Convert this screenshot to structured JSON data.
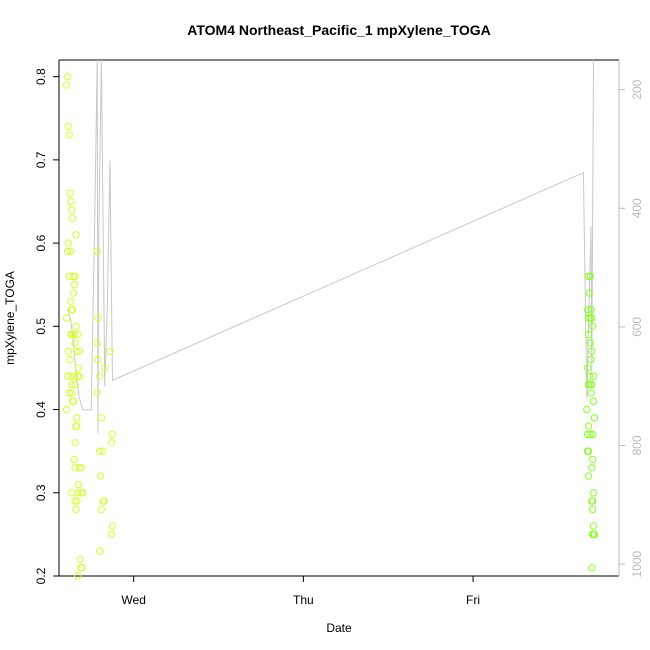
{
  "chart_data": {
    "type": "scatter",
    "title": "ATOM4 Northeast_Pacific_1 mpXylene_TOGA",
    "xlabel": "Date",
    "ylabel": "mpXylene_TOGA",
    "x_unit": "days",
    "xlim": [
      -0.44,
      2.86
    ],
    "ylim": [
      0.2,
      0.82
    ],
    "x_ticks": [
      {
        "value": 0,
        "label": "Wed"
      },
      {
        "value": 1,
        "label": "Thu"
      },
      {
        "value": 2,
        "label": "Fri"
      }
    ],
    "y_ticks": [
      0.2,
      0.3,
      0.4,
      0.5,
      0.6,
      0.7,
      0.8
    ],
    "y2_ticks": [
      200,
      400,
      600,
      800,
      1000
    ],
    "y2lim": [
      1020,
      150
    ],
    "colors": {
      "group_1": "#d5ff2a",
      "group_2": "#88ff22",
      "altitude_line": "#c8c8c8",
      "axis": "#000000",
      "y2_axis": "#bbbbbb"
    },
    "series": [
      {
        "group": "group_1",
        "points": [
          [
            -0.39,
            0.8
          ],
          [
            -0.395,
            0.79
          ],
          [
            -0.385,
            0.74
          ],
          [
            -0.38,
            0.73
          ],
          [
            -0.375,
            0.66
          ],
          [
            -0.37,
            0.65
          ],
          [
            -0.365,
            0.64
          ],
          [
            -0.36,
            0.63
          ],
          [
            -0.34,
            0.61
          ],
          [
            -0.385,
            0.6
          ],
          [
            -0.39,
            0.59
          ],
          [
            -0.37,
            0.59
          ],
          [
            -0.38,
            0.56
          ],
          [
            -0.355,
            0.56
          ],
          [
            -0.345,
            0.56
          ],
          [
            -0.35,
            0.55
          ],
          [
            -0.355,
            0.54
          ],
          [
            -0.37,
            0.53
          ],
          [
            -0.365,
            0.52
          ],
          [
            -0.36,
            0.52
          ],
          [
            -0.395,
            0.51
          ],
          [
            -0.34,
            0.5
          ],
          [
            -0.37,
            0.49
          ],
          [
            -0.36,
            0.49
          ],
          [
            -0.35,
            0.49
          ],
          [
            -0.33,
            0.49
          ],
          [
            -0.345,
            0.48
          ],
          [
            -0.385,
            0.47
          ],
          [
            -0.335,
            0.47
          ],
          [
            -0.32,
            0.47
          ],
          [
            -0.375,
            0.46
          ],
          [
            -0.325,
            0.45
          ],
          [
            -0.39,
            0.44
          ],
          [
            -0.37,
            0.44
          ],
          [
            -0.35,
            0.44
          ],
          [
            -0.33,
            0.44
          ],
          [
            -0.32,
            0.44
          ],
          [
            -0.365,
            0.43
          ],
          [
            -0.345,
            0.43
          ],
          [
            -0.38,
            0.42
          ],
          [
            -0.365,
            0.42
          ],
          [
            -0.36,
            0.41
          ],
          [
            -0.355,
            0.41
          ],
          [
            -0.395,
            0.4
          ],
          [
            -0.335,
            0.39
          ],
          [
            -0.34,
            0.38
          ],
          [
            -0.335,
            0.38
          ],
          [
            -0.345,
            0.36
          ],
          [
            -0.35,
            0.34
          ],
          [
            -0.345,
            0.33
          ],
          [
            -0.32,
            0.33
          ],
          [
            -0.31,
            0.33
          ],
          [
            -0.325,
            0.31
          ],
          [
            -0.365,
            0.3
          ],
          [
            -0.33,
            0.3
          ],
          [
            -0.31,
            0.3
          ],
          [
            -0.3,
            0.3
          ],
          [
            -0.345,
            0.29
          ],
          [
            -0.335,
            0.29
          ],
          [
            -0.34,
            0.28
          ],
          [
            -0.315,
            0.22
          ],
          [
            -0.31,
            0.21
          ],
          [
            -0.305,
            0.21
          ],
          [
            -0.33,
            0.2
          ],
          [
            -0.215,
            0.59
          ],
          [
            -0.21,
            0.51
          ],
          [
            -0.215,
            0.48
          ],
          [
            -0.21,
            0.46
          ],
          [
            -0.2,
            0.44
          ],
          [
            -0.215,
            0.42
          ],
          [
            -0.17,
            0.45
          ],
          [
            -0.14,
            0.47
          ],
          [
            -0.19,
            0.39
          ],
          [
            -0.2,
            0.35
          ],
          [
            -0.18,
            0.35
          ],
          [
            -0.195,
            0.32
          ],
          [
            -0.18,
            0.29
          ],
          [
            -0.175,
            0.29
          ],
          [
            -0.19,
            0.28
          ],
          [
            -0.125,
            0.37
          ],
          [
            -0.13,
            0.36
          ],
          [
            -0.125,
            0.26
          ],
          [
            -0.13,
            0.25
          ],
          [
            -0.2,
            0.23
          ]
        ]
      },
      {
        "group": "group_2",
        "points": [
          [
            2.68,
            0.56
          ],
          [
            2.69,
            0.56
          ],
          [
            2.685,
            0.54
          ],
          [
            2.695,
            0.52
          ],
          [
            2.675,
            0.52
          ],
          [
            2.68,
            0.51
          ],
          [
            2.69,
            0.51
          ],
          [
            2.7,
            0.51
          ],
          [
            2.705,
            0.5
          ],
          [
            2.68,
            0.49
          ],
          [
            2.69,
            0.48
          ],
          [
            2.7,
            0.47
          ],
          [
            2.695,
            0.46
          ],
          [
            2.675,
            0.45
          ],
          [
            2.685,
            0.44
          ],
          [
            2.71,
            0.44
          ],
          [
            2.68,
            0.43
          ],
          [
            2.69,
            0.43
          ],
          [
            2.7,
            0.43
          ],
          [
            2.695,
            0.42
          ],
          [
            2.71,
            0.41
          ],
          [
            2.67,
            0.4
          ],
          [
            2.715,
            0.39
          ],
          [
            2.68,
            0.38
          ],
          [
            2.675,
            0.37
          ],
          [
            2.69,
            0.37
          ],
          [
            2.705,
            0.37
          ],
          [
            2.68,
            0.35
          ],
          [
            2.675,
            0.35
          ],
          [
            2.705,
            0.34
          ],
          [
            2.7,
            0.33
          ],
          [
            2.68,
            0.32
          ],
          [
            2.71,
            0.3
          ],
          [
            2.7,
            0.29
          ],
          [
            2.705,
            0.29
          ],
          [
            2.705,
            0.28
          ],
          [
            2.71,
            0.26
          ],
          [
            2.715,
            0.25
          ],
          [
            2.705,
            0.25
          ],
          [
            2.71,
            0.25
          ],
          [
            2.7,
            0.21
          ]
        ]
      }
    ],
    "altitude_line": [
      [
        -0.39,
        570
      ],
      [
        -0.37,
        590
      ],
      [
        -0.35,
        640
      ],
      [
        -0.34,
        680
      ],
      [
        -0.32,
        720
      ],
      [
        -0.3,
        740
      ],
      [
        -0.27,
        740
      ],
      [
        -0.25,
        740
      ],
      [
        -0.23,
        430
      ],
      [
        -0.215,
        150
      ],
      [
        -0.21,
        780
      ],
      [
        -0.205,
        430
      ],
      [
        -0.19,
        150
      ],
      [
        -0.17,
        700
      ],
      [
        -0.155,
        560
      ],
      [
        -0.14,
        320
      ],
      [
        -0.125,
        690
      ],
      [
        2.65,
        340
      ],
      [
        2.67,
        720
      ],
      [
        2.68,
        600
      ],
      [
        2.695,
        430
      ],
      [
        2.7,
        680
      ],
      [
        2.71,
        150
      ]
    ]
  }
}
